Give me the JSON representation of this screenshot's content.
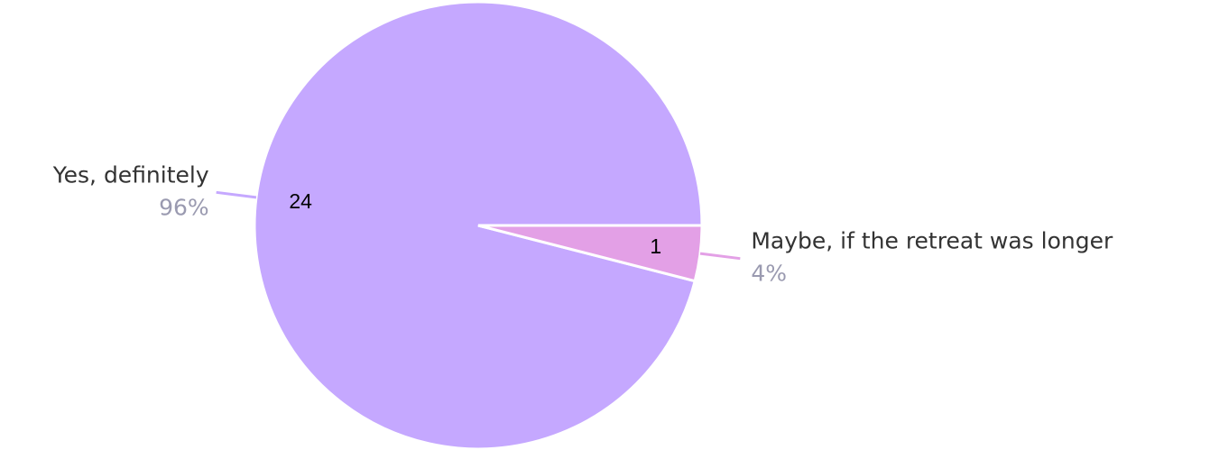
{
  "chart_data": {
    "type": "pie",
    "categories": [
      "Yes, definitely",
      "Maybe, if the retreat was longer"
    ],
    "values": [
      24,
      1
    ],
    "percent_values": [
      96,
      4
    ],
    "percent_labels": [
      "96%",
      "4%"
    ],
    "colors": [
      "#c5a8ff",
      "#e3a0e6"
    ]
  }
}
